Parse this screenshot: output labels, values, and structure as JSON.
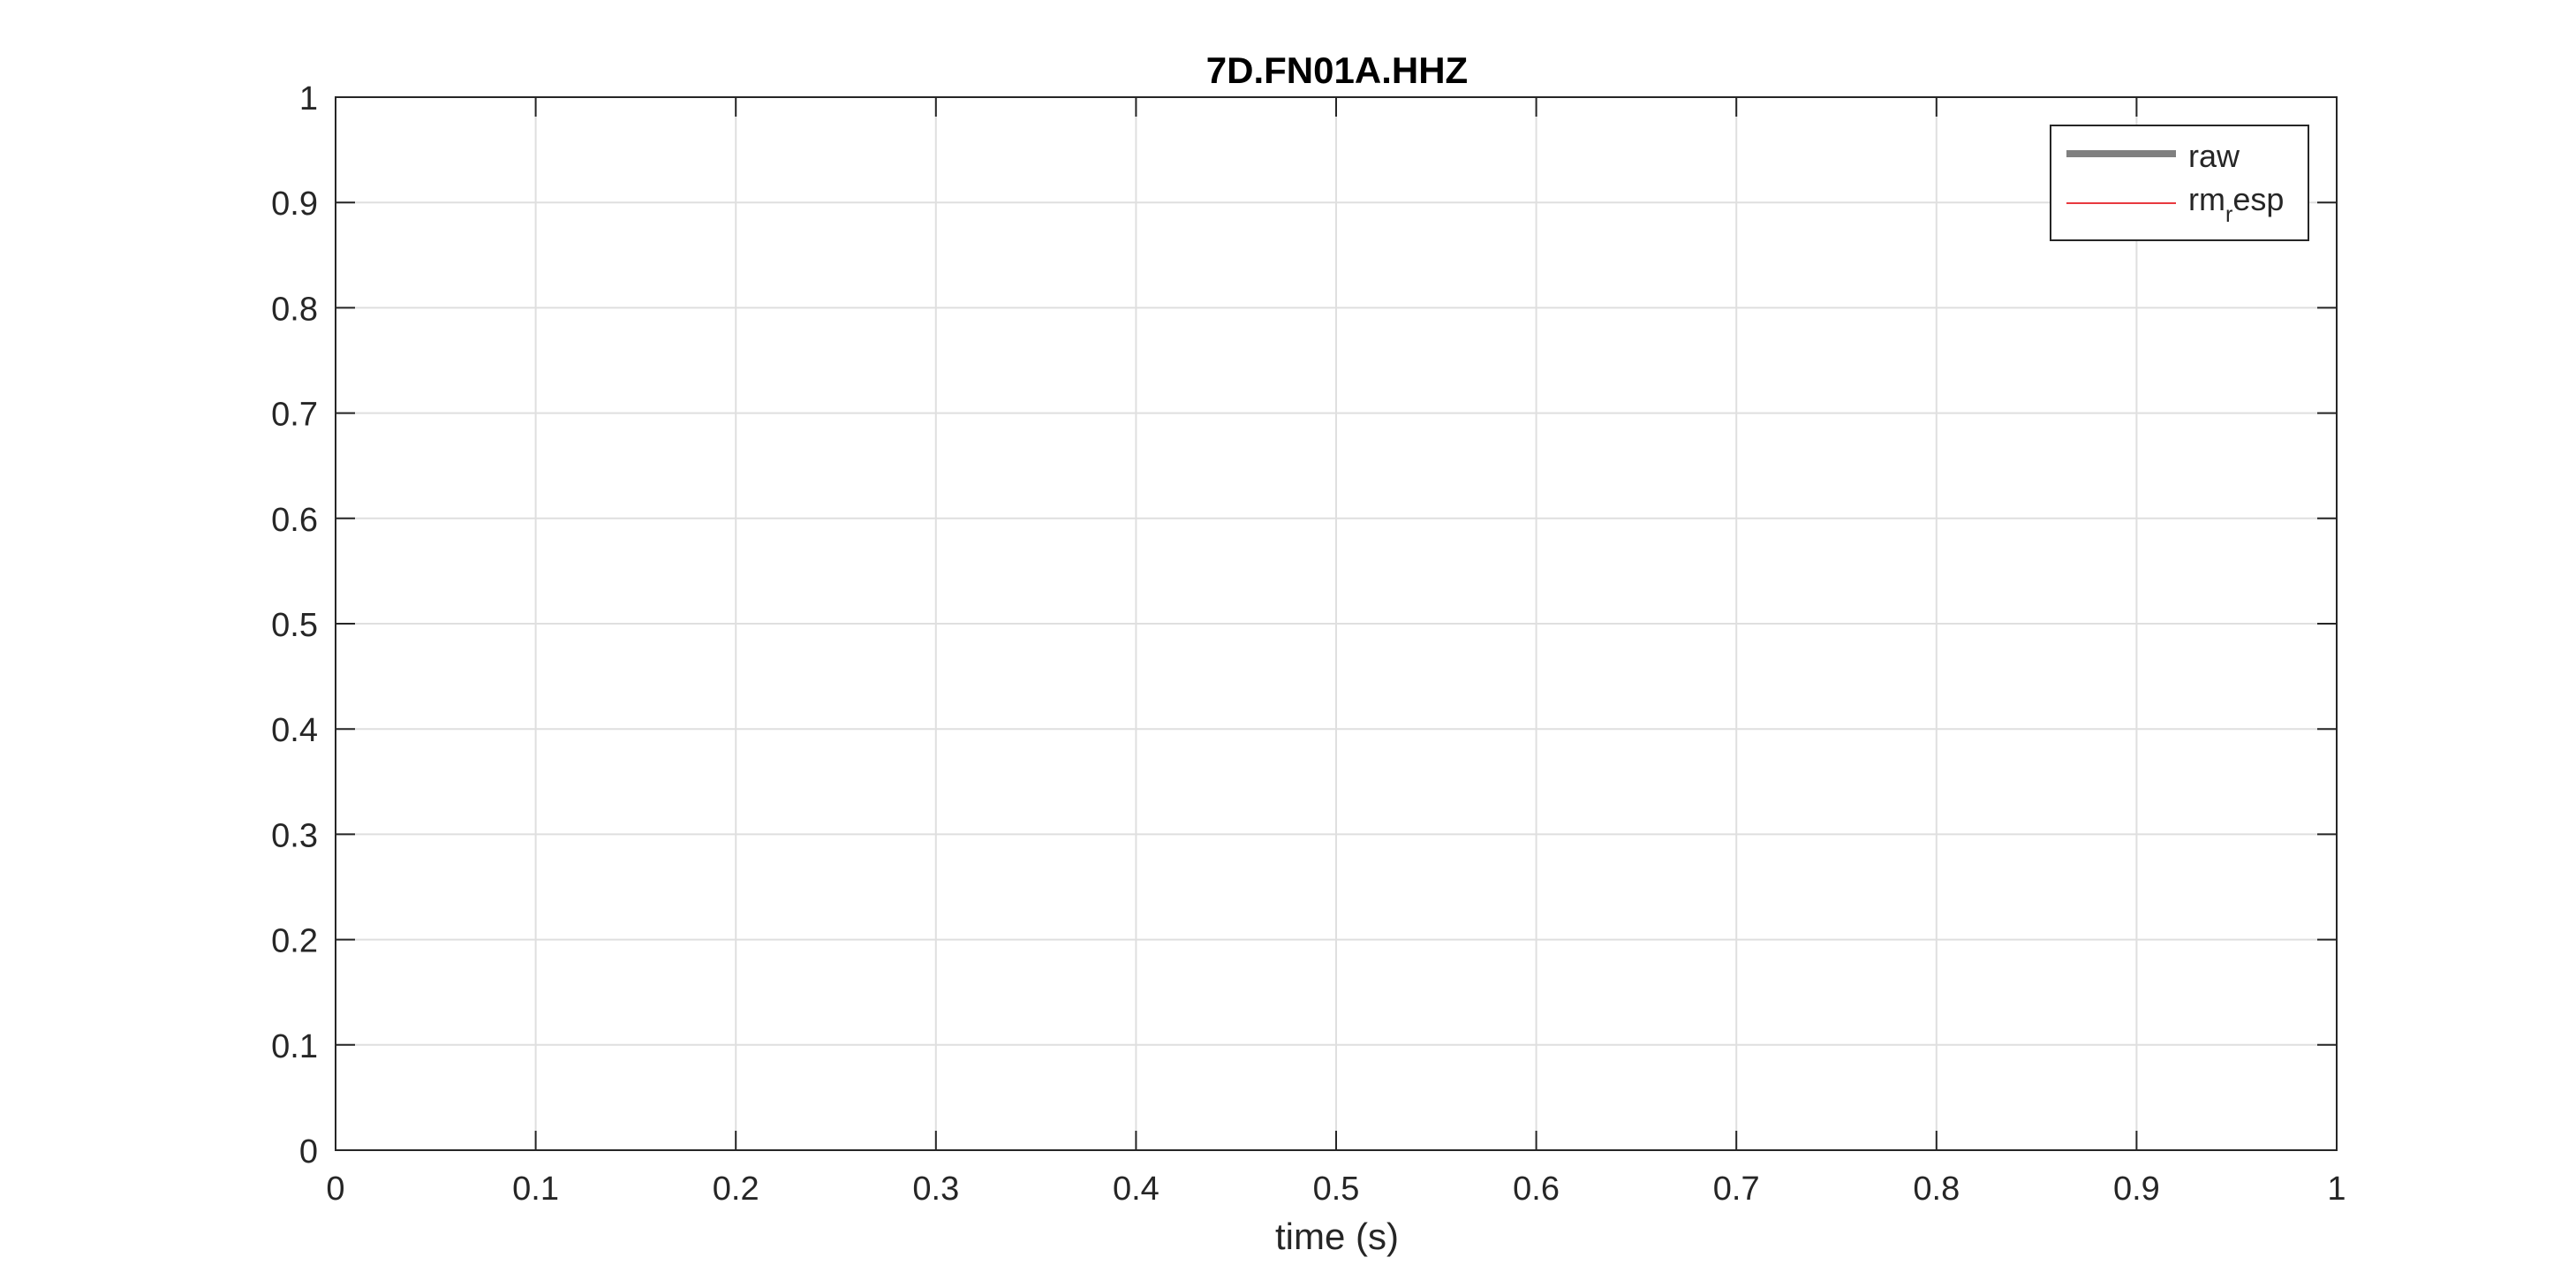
{
  "chart_data": {
    "type": "line",
    "title": "7D.FN01A.HHZ",
    "xlabel": "time (s)",
    "ylabel": "",
    "xlim": [
      0,
      1
    ],
    "ylim": [
      0,
      1
    ],
    "xticks": [
      "0",
      "0.1",
      "0.2",
      "0.3",
      "0.4",
      "0.5",
      "0.6",
      "0.7",
      "0.8",
      "0.9",
      "1"
    ],
    "yticks": [
      "0",
      "0.1",
      "0.2",
      "0.3",
      "0.4",
      "0.5",
      "0.6",
      "0.7",
      "0.8",
      "0.9",
      "1"
    ],
    "grid": true,
    "legend_position": "top-right",
    "series": [
      {
        "name": "raw",
        "color": "#808080",
        "x": [],
        "y": []
      },
      {
        "name_main": "rm",
        "name_sub": "r",
        "name_tail": "esp",
        "color": "#e8393f",
        "x": [],
        "y": []
      }
    ]
  }
}
